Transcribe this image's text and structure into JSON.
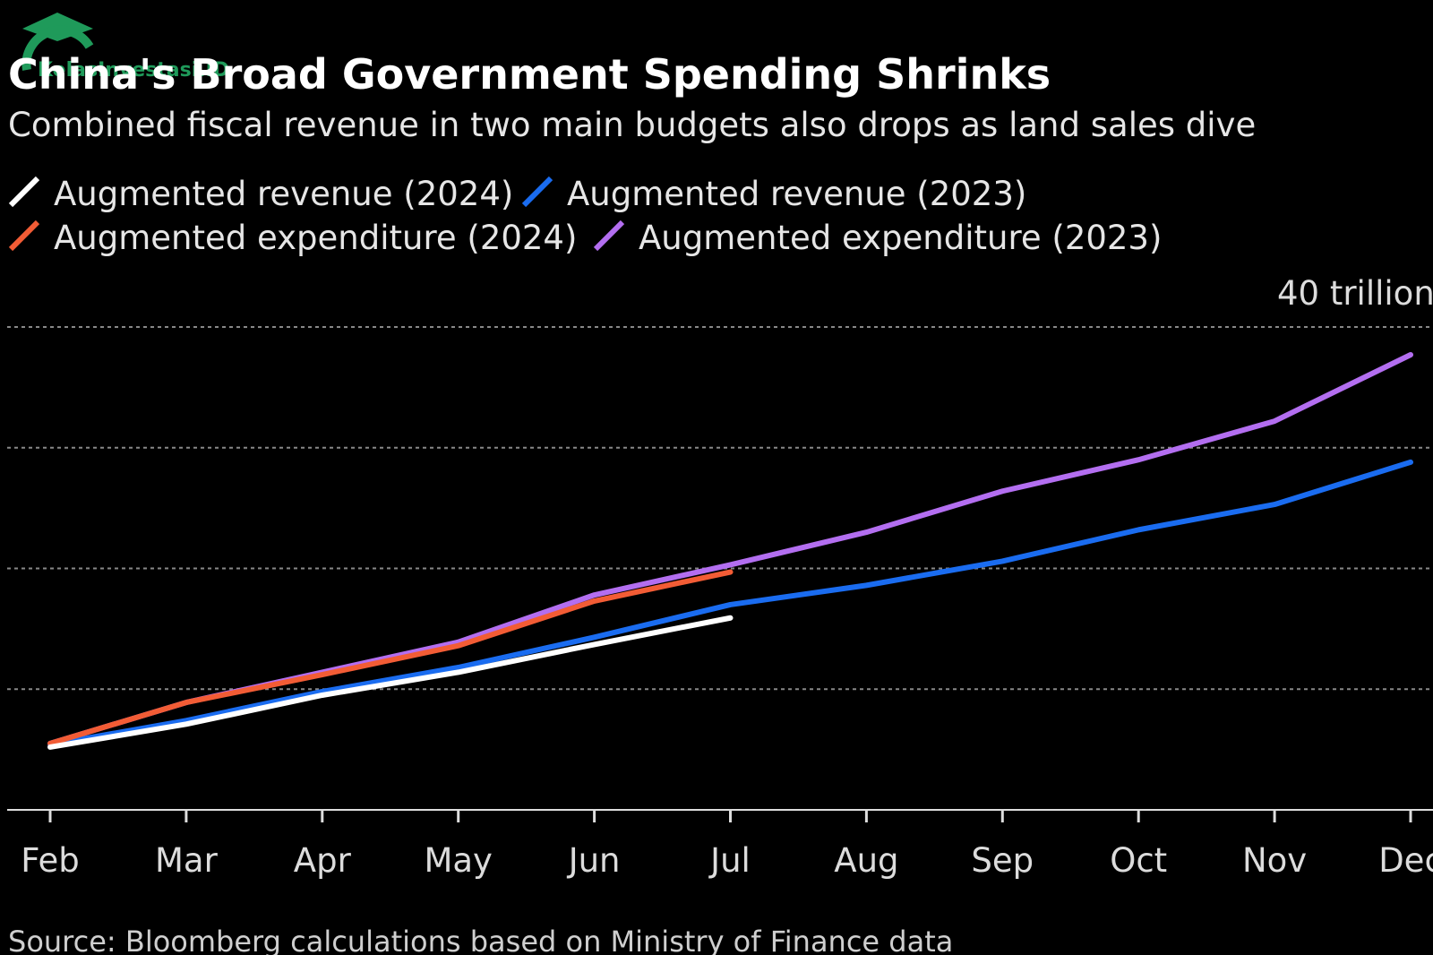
{
  "chart_data": {
    "type": "line",
    "watermark": "KelasInvestasi.ID",
    "title": "China's Broad Government Spending Shrinks",
    "subtitle": "Combined fiscal revenue in two main budgets also drops as land sales dive",
    "source": "Source: Bloomberg calculations based on Ministry of Finance data",
    "categories": [
      "Feb",
      "Mar",
      "Apr",
      "May",
      "Jun",
      "Jul",
      "Aug",
      "Sep",
      "Oct",
      "Nov",
      "Dec"
    ],
    "series": [
      {
        "name": "Augmented revenue (2024)",
        "color": "#ffffff",
        "values": [
          5.2,
          7.1,
          9.5,
          11.4,
          13.7,
          15.9,
          null,
          null,
          null,
          null,
          null
        ]
      },
      {
        "name": "Augmented revenue (2023)",
        "color": "#1a6cf0",
        "values": [
          5.4,
          7.4,
          9.8,
          11.8,
          14.3,
          17.0,
          18.6,
          20.6,
          23.2,
          25.3,
          28.8
        ]
      },
      {
        "name": "Augmented expenditure (2024)",
        "color": "#f25c35",
        "values": [
          5.5,
          8.9,
          11.2,
          13.6,
          17.3,
          19.7,
          null,
          null,
          null,
          null,
          null
        ]
      },
      {
        "name": "Augmented expenditure (2023)",
        "color": "#b36ef0",
        "values": [
          5.5,
          8.9,
          11.4,
          13.9,
          17.8,
          20.3,
          23.0,
          26.4,
          29.0,
          32.2,
          37.7
        ]
      }
    ],
    "ylim": [
      0,
      40
    ],
    "ygrid": [
      10,
      20,
      30,
      40
    ],
    "yticks": [
      {
        "value": 40,
        "label": "40 trillion"
      }
    ],
    "grid": true
  }
}
